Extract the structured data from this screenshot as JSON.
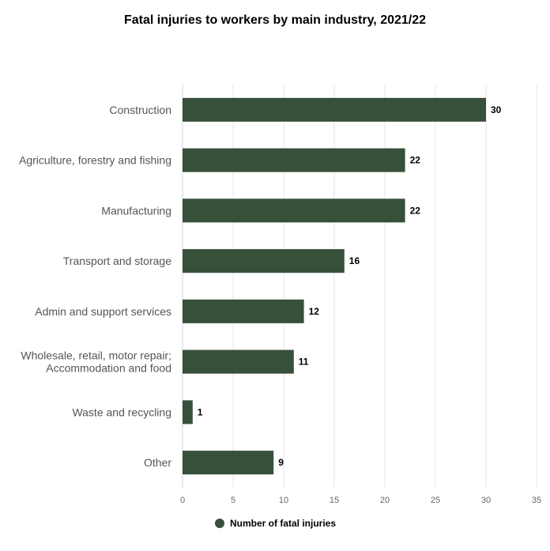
{
  "chart_data": {
    "type": "bar",
    "orientation": "horizontal",
    "title": "Fatal injuries to workers by main industry, 2021/22",
    "categories": [
      [
        "Construction"
      ],
      [
        "Agriculture, forestry and fishing"
      ],
      [
        "Manufacturing"
      ],
      [
        "Transport and storage"
      ],
      [
        "Admin and support services"
      ],
      [
        "Wholesale, retail, motor repair;",
        "Accommodation and food"
      ],
      [
        "Waste and recycling"
      ],
      [
        "Other"
      ]
    ],
    "series": [
      {
        "name": "Number of fatal injuries",
        "color": "#37503a",
        "values": [
          30,
          22,
          22,
          16,
          12,
          11,
          1,
          9
        ]
      }
    ],
    "xlim": [
      0,
      35
    ],
    "xticks": [
      0,
      5,
      10,
      15,
      20,
      25,
      30,
      35
    ],
    "xlabel": "",
    "ylabel": "",
    "grid": true,
    "data_labels": true,
    "legend_position": "bottom"
  }
}
